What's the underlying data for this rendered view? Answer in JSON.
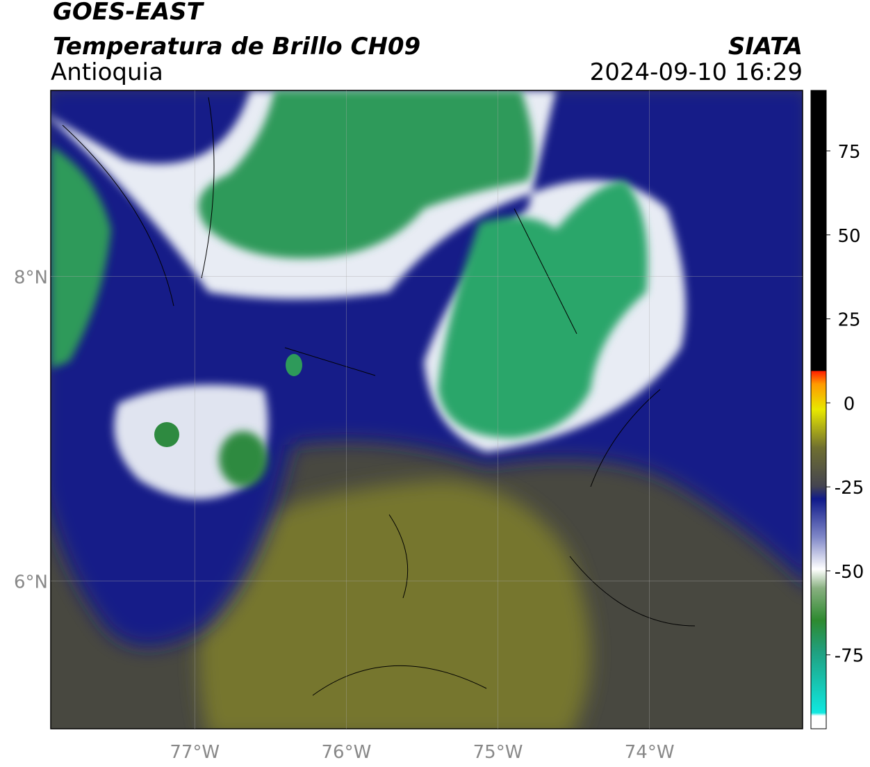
{
  "header": {
    "title": "GOES-EAST",
    "subtitle": "Temperatura de Brillo CH09",
    "region": "Antioquia",
    "source": "SIATA",
    "datetime": "2024-09-10 16:29"
  },
  "map": {
    "lon_lim": [
      -77.95,
      -72.99
    ],
    "lat_lim": [
      5.03,
      9.22
    ],
    "lon_ticks": [
      {
        "value": -77,
        "label": "77°W"
      },
      {
        "value": -76,
        "label": "76°W"
      },
      {
        "value": -75,
        "label": "75°W"
      },
      {
        "value": -74,
        "label": "74°W"
      }
    ],
    "lat_ticks": [
      {
        "value": 8,
        "label": "8°N"
      },
      {
        "value": 6,
        "label": "6°N"
      }
    ]
  },
  "colorbar": {
    "lim": [
      -97,
      93
    ],
    "ticks": [
      75,
      50,
      25,
      0,
      -25,
      -50,
      -75
    ]
  }
}
